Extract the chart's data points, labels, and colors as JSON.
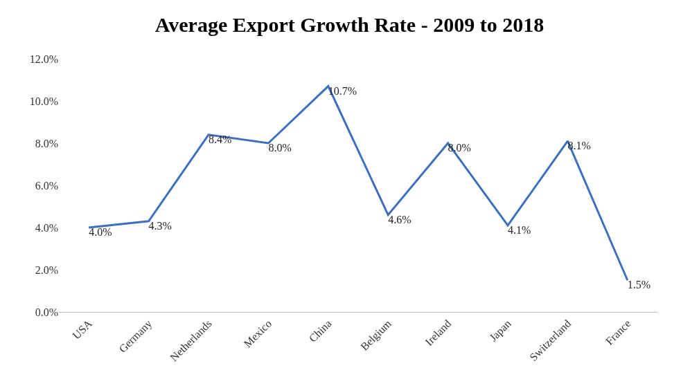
{
  "chart_data": {
    "type": "line",
    "title": "Average Export Growth Rate - 2009 to 2018",
    "categories": [
      "USA",
      "Germany",
      "Netherlands",
      "Mexico",
      "China",
      "Belgium",
      "Ireland",
      "Japan",
      "Switzerland",
      "France"
    ],
    "series": [
      {
        "color": "#3b6fc0",
        "values": [
          4.0,
          4.3,
          8.4,
          8.0,
          10.7,
          4.6,
          8.0,
          4.1,
          8.1,
          1.5
        ],
        "value_labels": [
          "4.0%",
          "4.3%",
          "8.4%",
          "8.0%",
          "10.7%",
          "4.6%",
          "8.0%",
          "4.1%",
          "8.1%",
          "1.5%"
        ]
      }
    ],
    "ylim": [
      0,
      12
    ],
    "yticks": [
      {
        "value": 0,
        "label": "0.0%"
      },
      {
        "value": 2,
        "label": "2.0%"
      },
      {
        "value": 4,
        "label": "4.0%"
      },
      {
        "value": 6,
        "label": "6.0%"
      },
      {
        "value": 8,
        "label": "8.0%"
      },
      {
        "value": 10,
        "label": "10.0%"
      },
      {
        "value": 12,
        "label": "12.0%"
      }
    ],
    "marker": "none",
    "line_style": "solid"
  }
}
